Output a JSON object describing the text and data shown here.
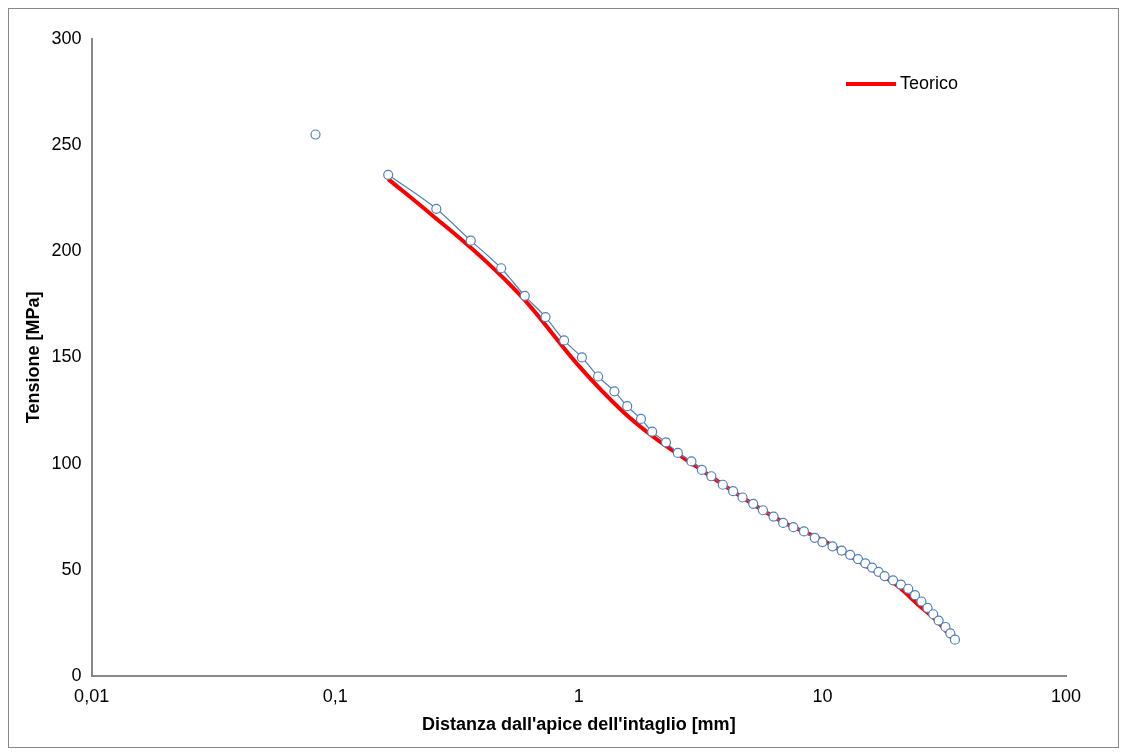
{
  "chart_data": {
    "type": "line",
    "xlabel": "Distanza dall'apice dell'intaglio [mm]",
    "ylabel": "Tensione [MPa]",
    "log": "x",
    "xlim": [
      0.01,
      100
    ],
    "xticks": [
      {
        "value": 0.01,
        "label": "0,01"
      },
      {
        "value": 0.1,
        "label": "0,1"
      },
      1,
      10,
      100
    ],
    "ylim": [
      0,
      300
    ],
    "yticks": [
      0,
      50,
      100,
      150,
      200,
      250,
      300
    ],
    "grid": false,
    "legend": "top right",
    "series": [
      {
        "color": "#4f81bd",
        "marker": "circle",
        "x": [
          0.083,
          0.12,
          0.165,
          0.26,
          0.36,
          0.48,
          0.6,
          0.73,
          0.87,
          1.03,
          1.2,
          1.4,
          1.58,
          1.8,
          2.0,
          2.28,
          2.55,
          2.9,
          3.2,
          3.5,
          3.9,
          4.3,
          4.7,
          5.2,
          5.7,
          6.3,
          6.9,
          7.6,
          8.4,
          9.3,
          10,
          11,
          12,
          13,
          14,
          15,
          16,
          17,
          18,
          19.5,
          21,
          22.5,
          24,
          25.5,
          27,
          28.5,
          30,
          32,
          33.5,
          35
        ],
        "values": [
          255,
          null,
          236,
          220,
          205,
          192,
          179,
          169,
          158,
          150,
          141,
          134,
          127,
          121,
          115,
          110,
          105,
          101,
          97,
          94,
          90,
          87,
          84,
          81,
          78,
          75,
          72,
          70,
          68,
          65,
          63,
          61,
          59,
          57,
          55,
          53,
          51,
          49,
          47,
          45,
          43,
          41,
          38,
          35,
          32,
          29,
          26,
          23,
          20,
          17
        ]
      },
      {
        "name": "Teorico",
        "color": "#ff0000",
        "marker": "none",
        "x": [
          0.165,
          0.25,
          0.4,
          0.6,
          1,
          1.5,
          2,
          3,
          5,
          7,
          10,
          15,
          20,
          25,
          30,
          35
        ],
        "values": [
          234,
          217,
          197,
          177,
          146,
          125,
          113,
          99,
          82,
          72,
          64,
          52,
          43,
          33,
          25,
          16
        ]
      }
    ]
  }
}
